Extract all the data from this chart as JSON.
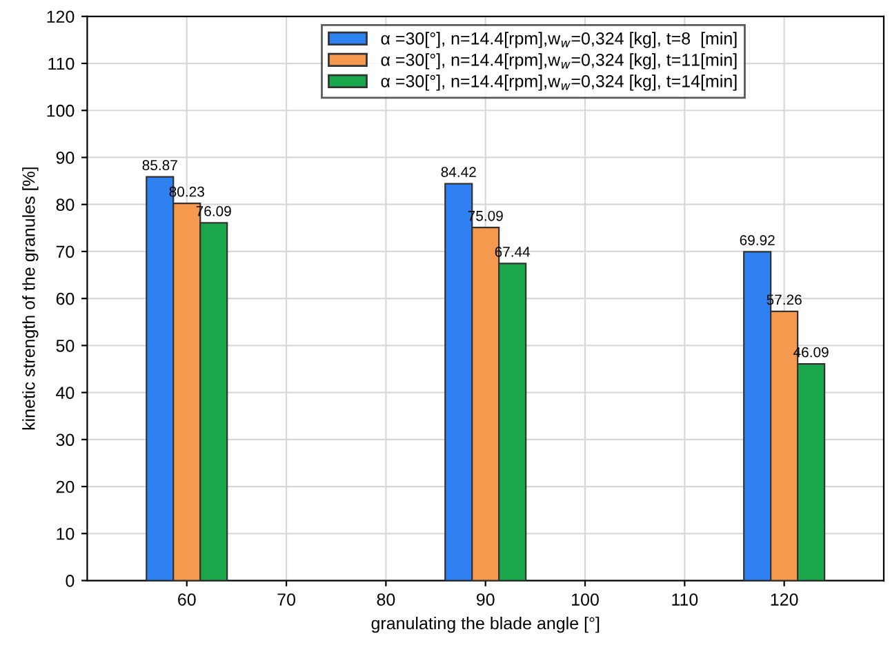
{
  "chart_data": {
    "type": "bar",
    "xlabel": "granulating the blade angle [°]",
    "ylabel": "kinetic strength of the granules [%]",
    "x": [
      60,
      90,
      120
    ],
    "series": [
      {
        "name": "α =30[°], n=14.4[rpm],w$_{w}$=0,324 [kg], t=8  [min]",
        "color": "#2f80f0",
        "values": [
          85.87,
          84.42,
          69.92
        ]
      },
      {
        "name": "α =30[°], n=14.4[rpm],w$_{w}$=0,324 [kg], t=11[min]",
        "color": "#f5994f",
        "values": [
          80.23,
          75.09,
          57.26
        ]
      },
      {
        "name": "α =30[°], n=14.4[rpm],w$_{w}$=0,324 [kg], t=14[min]",
        "color": "#1aa84a",
        "values": [
          76.09,
          67.44,
          46.09
        ]
      }
    ],
    "xlim": [
      50,
      130
    ],
    "xticks": [
      60,
      70,
      80,
      90,
      100,
      110,
      120
    ],
    "ylim": [
      0,
      120
    ],
    "yticks": [
      0,
      10,
      20,
      30,
      40,
      50,
      60,
      70,
      80,
      90,
      100,
      110,
      120
    ],
    "grid": true,
    "legend": "top",
    "data_labels": true
  }
}
